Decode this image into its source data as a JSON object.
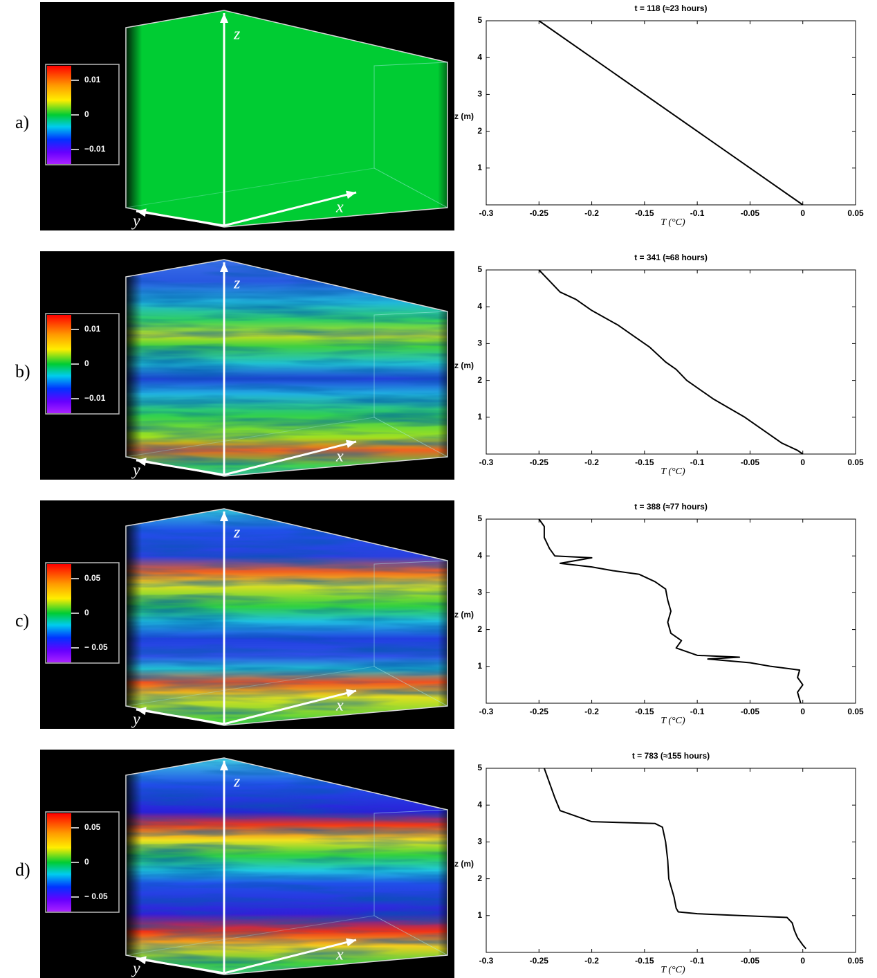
{
  "panels": [
    {
      "label": "a)",
      "colorbar_ticks": [
        0.01,
        0,
        {
          "value": -0.01,
          "label": "−0.01"
        }
      ],
      "axis_labels": {
        "z": "z",
        "x": "x",
        "y": "y"
      }
    },
    {
      "label": "b)",
      "colorbar_ticks": [
        0.01,
        0,
        {
          "value": -0.01,
          "label": "−0.01"
        }
      ],
      "axis_labels": {
        "z": "z",
        "x": "x",
        "y": "y"
      }
    },
    {
      "label": "c)",
      "colorbar_ticks": [
        0.05,
        0,
        {
          "value": -0.05,
          "label": "− 0.05"
        }
      ],
      "axis_labels": {
        "z": "z",
        "x": "x",
        "y": "y"
      }
    },
    {
      "label": "d)",
      "colorbar_ticks": [
        0.05,
        0,
        {
          "value": -0.05,
          "label": "− 0.05"
        }
      ],
      "axis_labels": {
        "z": "z",
        "x": "x",
        "y": "y"
      }
    }
  ],
  "chart_data": [
    {
      "type": "line",
      "title": "t = 118 (≈23 hours)",
      "x_label": "T (°C)",
      "y_label": "z (m)",
      "color": "#000000",
      "x": [
        0,
        -0.25
      ],
      "values": [
        0,
        5
      ],
      "xlim": [
        -0.3,
        0.05
      ],
      "xticks": [
        -0.3,
        -0.25,
        -0.2,
        -0.15,
        -0.1,
        -0.05,
        0,
        0.05
      ],
      "ylim": [
        0,
        5
      ],
      "yticks": [
        1,
        2,
        3,
        4,
        5
      ]
    },
    {
      "type": "line",
      "title": "t = 341 (≈68 hours)",
      "x_label": "T (°C)",
      "y_label": "z (m)",
      "color": "#000000",
      "x": [
        0,
        -0.005,
        -0.02,
        -0.035,
        -0.055,
        -0.085,
        -0.11,
        -0.12,
        -0.13,
        -0.145,
        -0.16,
        -0.175,
        -0.2,
        -0.215,
        -0.23,
        -0.24,
        -0.25
      ],
      "values": [
        0,
        0.1,
        0.3,
        0.6,
        1,
        1.5,
        2,
        2.3,
        2.5,
        2.9,
        3.2,
        3.5,
        3.9,
        4.2,
        4.4,
        4.7,
        5
      ],
      "xlim": [
        -0.3,
        0.05
      ],
      "xticks": [
        -0.3,
        -0.25,
        -0.2,
        -0.15,
        -0.1,
        -0.05,
        0,
        0.05
      ],
      "ylim": [
        0,
        5
      ],
      "yticks": [
        1,
        2,
        3,
        4,
        5
      ]
    },
    {
      "type": "line",
      "title": "t = 388 (≈77 hours)",
      "x_label": "T (°C)",
      "y_label": "z (m)",
      "color": "#000000",
      "x": [
        -0.002,
        -0.005,
        0,
        -0.005,
        -0.003,
        -0.03,
        -0.05,
        -0.09,
        -0.06,
        -0.1,
        -0.12,
        -0.115,
        -0.125,
        -0.128,
        -0.125,
        -0.128,
        -0.13,
        -0.14,
        -0.155,
        -0.18,
        -0.2,
        -0.23,
        -0.2,
        -0.235,
        -0.24,
        -0.245,
        -0.245,
        -0.25
      ],
      "values": [
        0,
        0.3,
        0.5,
        0.7,
        0.9,
        1,
        1.1,
        1.2,
        1.25,
        1.3,
        1.5,
        1.7,
        1.9,
        2.2,
        2.5,
        2.8,
        3.1,
        3.3,
        3.5,
        3.6,
        3.7,
        3.8,
        3.95,
        4,
        4.2,
        4.5,
        4.8,
        5
      ],
      "xlim": [
        -0.3,
        0.05
      ],
      "xticks": [
        -0.3,
        -0.25,
        -0.2,
        -0.15,
        -0.1,
        -0.05,
        0,
        0.05
      ],
      "ylim": [
        0,
        5
      ],
      "yticks": [
        1,
        2,
        3,
        4,
        5
      ]
    },
    {
      "type": "line",
      "title": "t = 783 (≈155 hours)",
      "x_label": "T (°C)",
      "y_label": "z (m)",
      "color": "#000000",
      "x": [
        0.003,
        0,
        -0.005,
        -0.008,
        -0.01,
        -0.015,
        -0.06,
        -0.1,
        -0.118,
        -0.12,
        -0.122,
        -0.127,
        -0.128,
        -0.13,
        -0.133,
        -0.14,
        -0.2,
        -0.225,
        -0.23,
        -0.235,
        -0.24,
        -0.245
      ],
      "values": [
        0.1,
        0.2,
        0.4,
        0.6,
        0.8,
        0.95,
        1,
        1.05,
        1.1,
        1.2,
        1.5,
        2,
        2.5,
        3,
        3.4,
        3.5,
        3.55,
        3.8,
        3.85,
        4.2,
        4.6,
        5
      ],
      "xlim": [
        -0.3,
        0.05
      ],
      "xticks": [
        -0.3,
        -0.25,
        -0.2,
        -0.15,
        -0.1,
        -0.05,
        0,
        0.05
      ],
      "ylim": [
        0,
        5
      ],
      "yticks": [
        1,
        2,
        3,
        4,
        5
      ]
    }
  ]
}
